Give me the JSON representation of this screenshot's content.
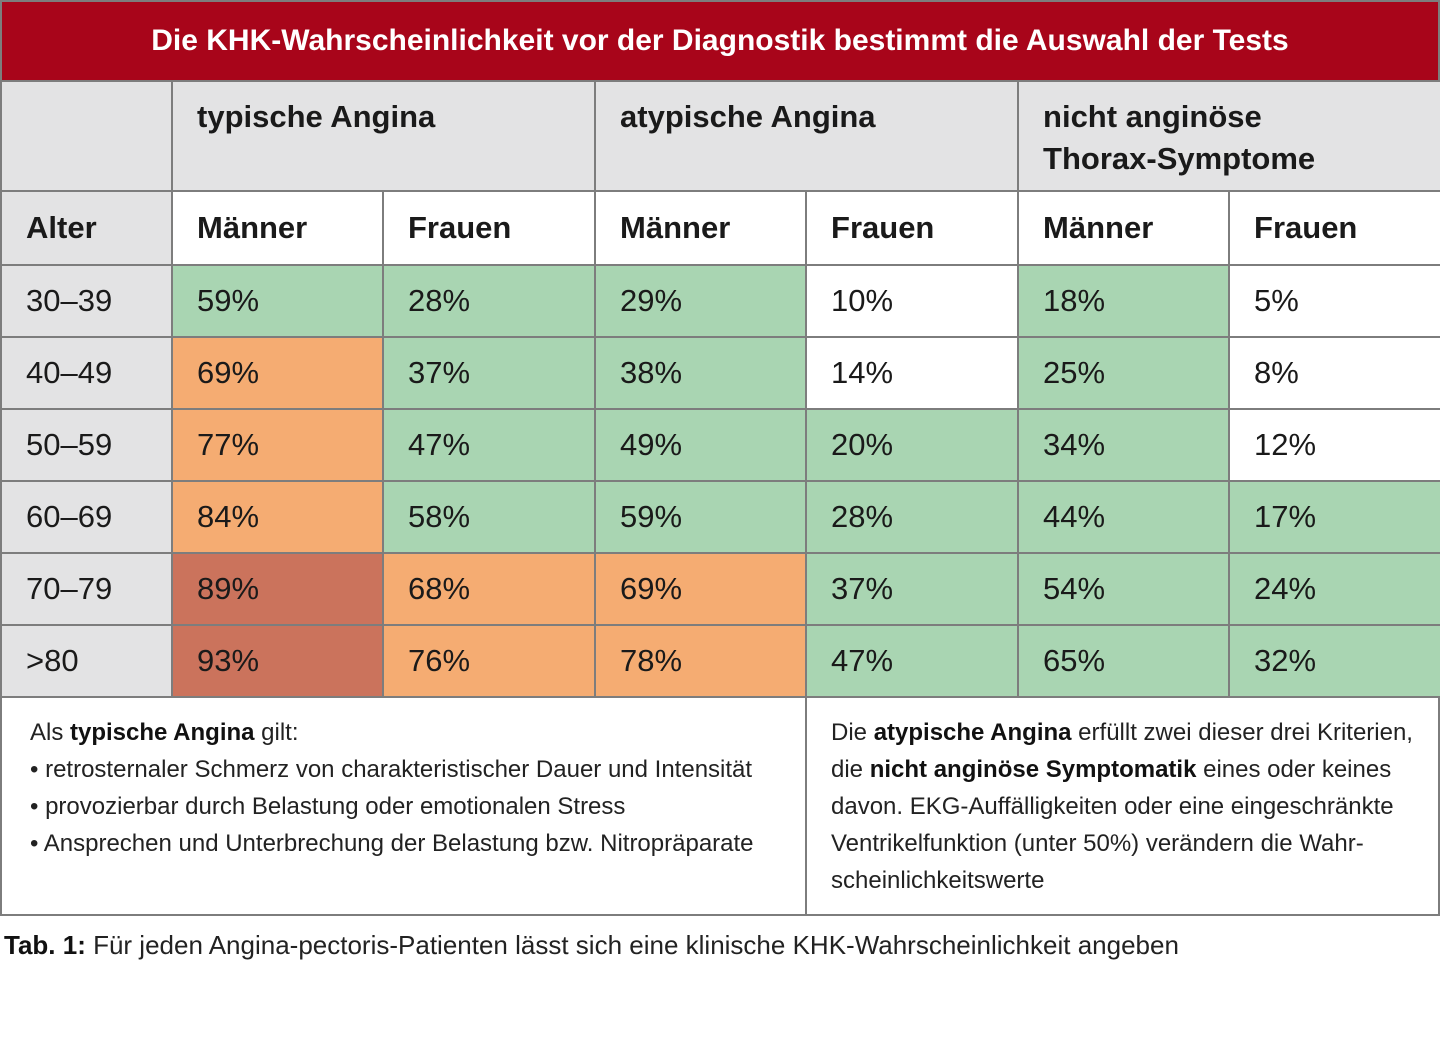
{
  "title": "Die KHK-Wahrscheinlichkeit vor der Diagnostik bestimmt die Auswahl der Tests",
  "groups": [
    "typische Angina",
    "atypische Angina",
    "nicht anginöse\nThorax-Symptome"
  ],
  "subheaders": {
    "age": "Alter",
    "cols": [
      "Männer",
      "Frauen",
      "Männer",
      "Frauen",
      "Männer",
      "Frauen"
    ]
  },
  "rows": [
    {
      "age": "30–39",
      "cells": [
        "59%",
        "28%",
        "29%",
        "10%",
        "18%",
        "5%"
      ]
    },
    {
      "age": "40–49",
      "cells": [
        "69%",
        "37%",
        "38%",
        "14%",
        "25%",
        "8%"
      ]
    },
    {
      "age": "50–59",
      "cells": [
        "77%",
        "47%",
        "49%",
        "20%",
        "34%",
        "12%"
      ]
    },
    {
      "age": "60–69",
      "cells": [
        "84%",
        "58%",
        "59%",
        "28%",
        "44%",
        "17%"
      ]
    },
    {
      "age": "70–79",
      "cells": [
        "89%",
        "68%",
        "69%",
        "37%",
        "54%",
        "24%"
      ]
    },
    {
      "age": ">80",
      "cells": [
        "93%",
        "76%",
        "78%",
        "47%",
        "65%",
        "32%"
      ]
    }
  ],
  "colors": {
    "title_bg": "#a8051a",
    "green": "#a9d5b2",
    "orange": "#f5ac72",
    "red": "#cb735c",
    "grey": "#e3e3e4"
  },
  "notes_left": {
    "intro_pre": "Als ",
    "intro_bold": "typische Angina",
    "intro_post": " gilt:",
    "bullets": [
      "retrosternaler Schmerz von charakteristischer Dauer und Intensität",
      "provozierbar durch Belastung oder emotionalen Stress",
      "Ansprechen und Unterbrechung der Belastung bzw. Nitropräparate"
    ]
  },
  "notes_right": {
    "p1": "Die ",
    "b1": "atypische Angina",
    "p2": " erfüllt zwei dieser drei Kriterien, die ",
    "b2": "nicht anginöse Symptomatik",
    "p3": " eines oder keines davon. EKG-Auffälligkeiten oder eine eingeschränkte Ventrikelfunktion (unter 50%) verändern die Wahr-scheinlichkeitswerte"
  },
  "caption": {
    "label": "Tab. 1:",
    "text": " Für jeden Angina-pectoris-Patienten lässt sich eine klinische KHK-Wahrscheinlichkeit angeben"
  }
}
